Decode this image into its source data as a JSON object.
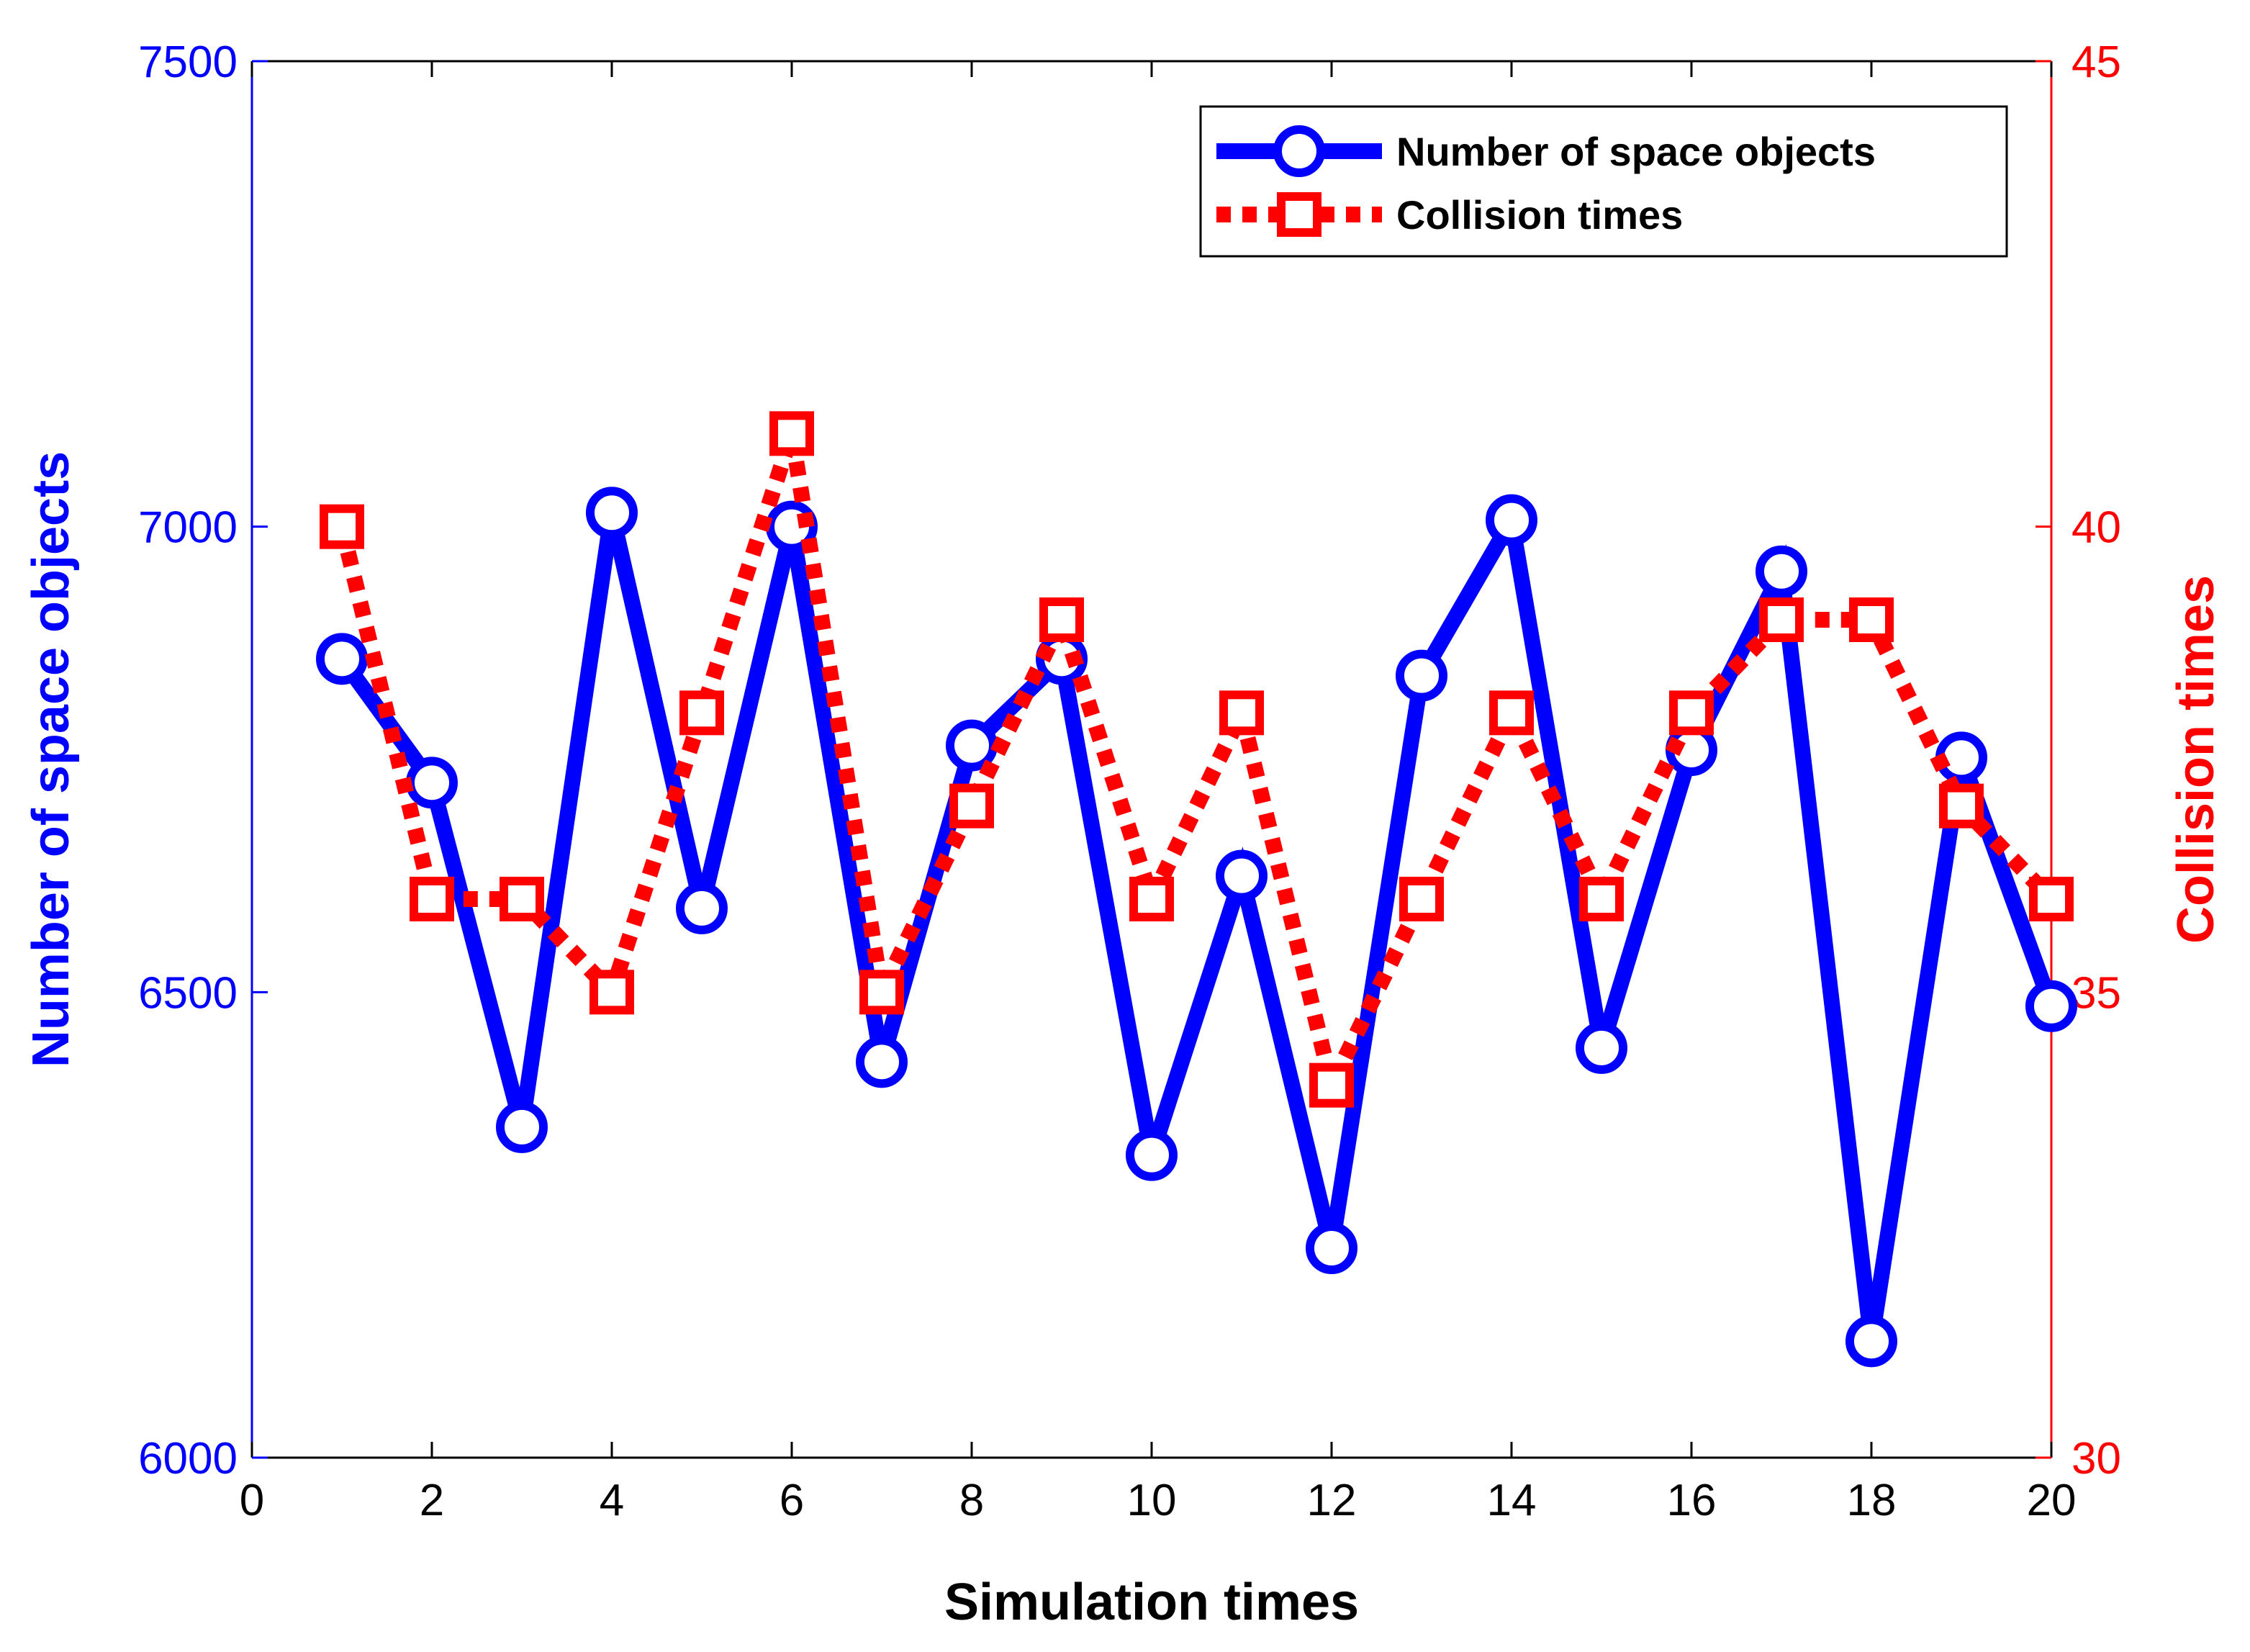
{
  "chart_data": {
    "type": "line",
    "title": "",
    "xlabel": "Simulation times",
    "ylabel_left": "Number of space objects",
    "ylabel_right": "Collision times",
    "xlim": [
      0,
      20
    ],
    "xticks": [
      0,
      2,
      4,
      6,
      8,
      10,
      12,
      14,
      16,
      18,
      20
    ],
    "ylim_left": [
      6000,
      7500
    ],
    "yticks_left": [
      6000,
      6500,
      7000,
      7500
    ],
    "ylim_right": [
      30,
      45
    ],
    "yticks_right": [
      30,
      35,
      40,
      45
    ],
    "x": [
      1,
      2,
      3,
      4,
      5,
      6,
      7,
      8,
      9,
      10,
      11,
      12,
      13,
      14,
      15,
      16,
      17,
      18,
      19,
      20
    ],
    "series": [
      {
        "name": "Number of space objects",
        "axis": "left",
        "color": "#0000ff",
        "style": "solid",
        "marker": "circle",
        "values": [
          6858,
          6725,
          6355,
          7015,
          6590,
          7000,
          6425,
          6765,
          6858,
          6325,
          6625,
          6225,
          6840,
          7007,
          6440,
          6760,
          6952,
          6125,
          6752,
          6485
        ]
      },
      {
        "name": "Collision times",
        "axis": "right",
        "color": "#ff0000",
        "style": "dotted",
        "marker": "square",
        "values": [
          40,
          36,
          36,
          35,
          38,
          41,
          35,
          37,
          39,
          36,
          38,
          34,
          36,
          38,
          36,
          38,
          39,
          39,
          37,
          36
        ]
      }
    ],
    "legend_location": "top-right",
    "grid": false
  }
}
